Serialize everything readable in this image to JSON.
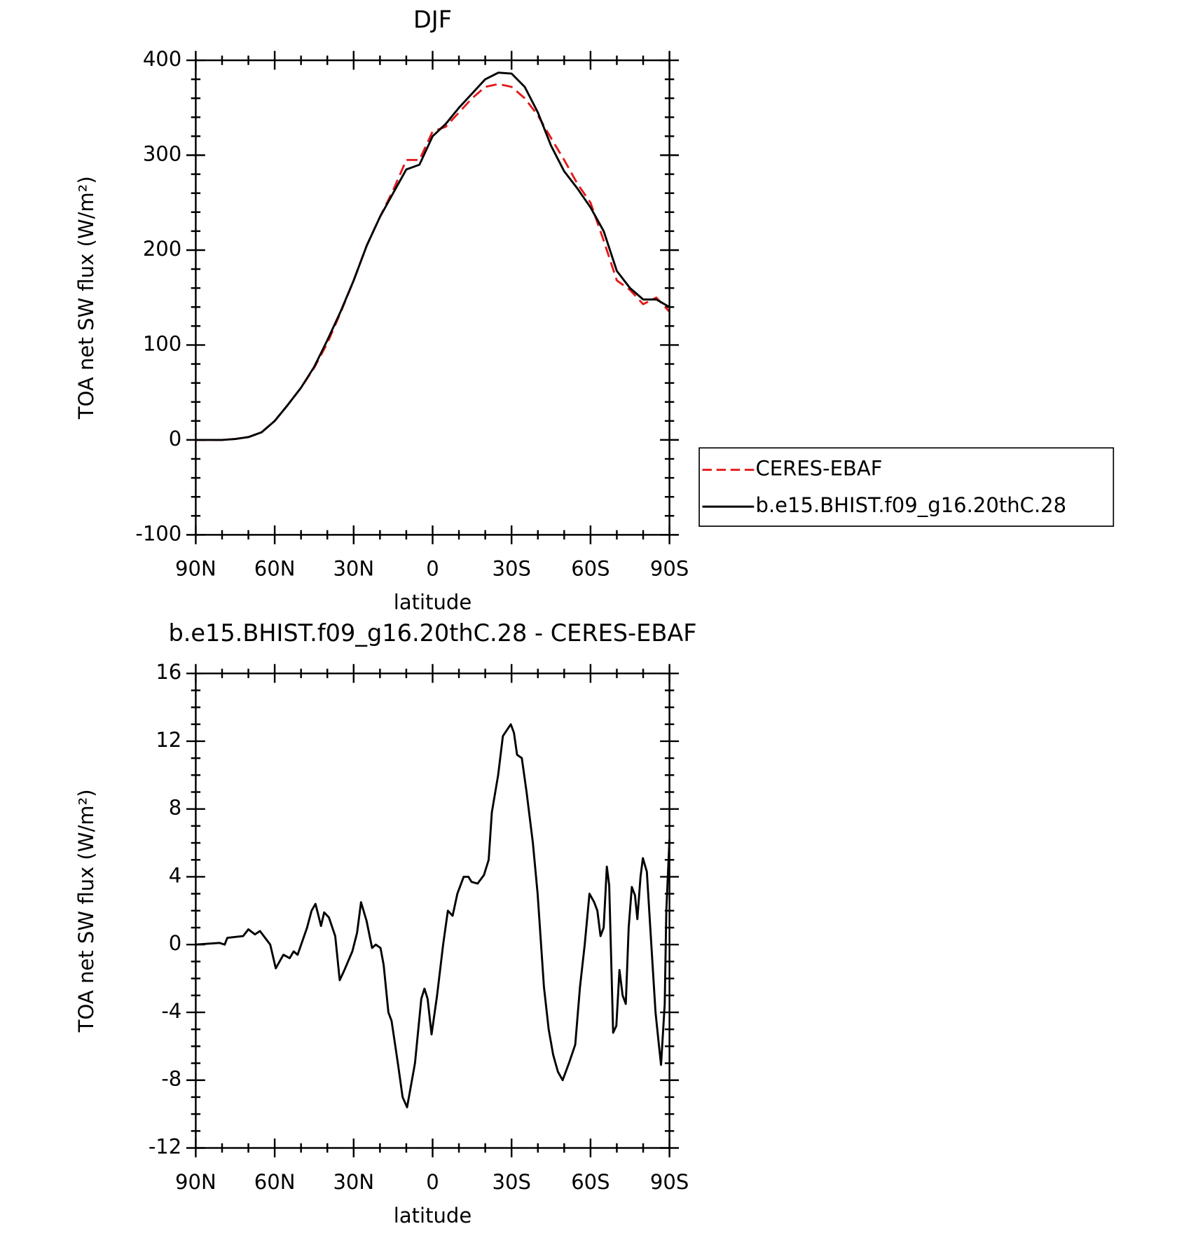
{
  "chart_data": [
    {
      "type": "line",
      "title": "DJF",
      "xlabel": "latitude",
      "ylabel": "TOA net SW flux (W/m²)",
      "x": [
        90,
        85,
        80,
        75,
        70,
        65,
        60,
        55,
        50,
        45,
        40,
        35,
        30,
        25,
        20,
        15,
        10,
        5,
        0,
        -5,
        -10,
        -15,
        -20,
        -25,
        -30,
        -35,
        -40,
        -45,
        -50,
        -55,
        -60,
        -65,
        -70,
        -75,
        -80,
        -85,
        -90
      ],
      "series": [
        {
          "name": "CERES-EBAF",
          "color": "#e41a1c",
          "dashed": true,
          "values": [
            0,
            0,
            0,
            1,
            3,
            8,
            20,
            37,
            55,
            76,
            102,
            134,
            168,
            205,
            235,
            263,
            295,
            295,
            325,
            330,
            345,
            360,
            372,
            375,
            372,
            360,
            342,
            318,
            295,
            270,
            250,
            210,
            168,
            158,
            143,
            150,
            135
          ]
        },
        {
          "name": "b.e15.BHIST.f09_g16.20thC.28",
          "color": "#000000",
          "dashed": false,
          "values": [
            0,
            0,
            0,
            1,
            3,
            8,
            20,
            37,
            55,
            77,
            105,
            135,
            168,
            205,
            235,
            260,
            285,
            290,
            320,
            333,
            350,
            365,
            380,
            387,
            386,
            372,
            345,
            310,
            283,
            265,
            245,
            220,
            178,
            160,
            148,
            148,
            140
          ]
        }
      ],
      "xlim": [
        90,
        -90
      ],
      "xticks": [
        {
          "value": 90,
          "label": "90N"
        },
        {
          "value": 60,
          "label": "60N"
        },
        {
          "value": 30,
          "label": "30N"
        },
        0,
        {
          "value": -30,
          "label": "30S"
        },
        {
          "value": -60,
          "label": "60S"
        },
        {
          "value": -90,
          "label": "90S"
        }
      ],
      "ylim": [
        -100,
        400
      ],
      "yticks": [
        -100,
        0,
        100,
        200,
        300,
        400
      ],
      "legend": "outside-right"
    },
    {
      "type": "line",
      "title": "b.e15.BHIST.f09_g16.20thC.28 - CERES-EBAF",
      "xlabel": "latitude",
      "ylabel": "TOA net SW flux (W/m²)",
      "x": [
        90,
        81,
        79,
        78,
        72,
        70,
        67.5,
        65.6,
        61.7,
        59.6,
        56.7,
        54.3,
        52.8,
        51.3,
        47.7,
        46,
        44.5,
        42.4,
        41.2,
        39.4,
        37,
        35.3,
        33.5,
        30.5,
        28.7,
        27.2,
        25.1,
        23,
        21.6,
        19.8,
        18.6,
        16.8,
        15.6,
        13.2,
        11.4,
        9.7,
        6.7,
        4.3,
        3.1,
        1.9,
        0.4,
        -1.7,
        -4,
        -5.8,
        -7.6,
        -9.4,
        -11.8,
        -13.6,
        -14.8,
        -17.1,
        -19.5,
        -21.3,
        -22.5,
        -24.9,
        -26.7,
        -29.7,
        -30.9,
        -32.1,
        -33.9,
        -35.7,
        -38.1,
        -39.9,
        -42.3,
        -44.1,
        -45.8,
        -47.6,
        -49.4,
        -51.8,
        -54.2,
        -56,
        -57.8,
        -59.6,
        -61.4,
        -62.6,
        -63.8,
        -65,
        -66.2,
        -67.1,
        -68.6,
        -69.8,
        -71,
        -72.2,
        -73.4,
        -74.5,
        -75.7,
        -76.9,
        -77.8,
        -79,
        -79.9,
        -81.4,
        -83.5,
        -84.7,
        -85.9,
        -86.8,
        -88.2,
        -88.8,
        -90
      ],
      "series": [
        {
          "color": "#000000",
          "dashed": false,
          "values": [
            0,
            0.1,
            0,
            0.4,
            0.5,
            0.9,
            0.6,
            0.8,
            0,
            -1.4,
            -0.6,
            -0.8,
            -0.4,
            -0.6,
            1,
            2,
            2.4,
            1.1,
            1.9,
            1.6,
            0.5,
            -2.1,
            -1.5,
            -0.4,
            0.7,
            2.5,
            1.4,
            -0.2,
            0,
            -0.2,
            -1.2,
            -4,
            -4.5,
            -7,
            -9,
            -9.6,
            -7,
            -3.2,
            -2.6,
            -3.2,
            -5.3,
            -3,
            0,
            2,
            1.7,
            3,
            4,
            4,
            3.7,
            3.6,
            4.1,
            5,
            7.8,
            10,
            12.3,
            13,
            12.5,
            11.2,
            11,
            9,
            6,
            3,
            -2.5,
            -5,
            -6.5,
            -7.5,
            -8,
            -7,
            -5.9,
            -2.5,
            0,
            3,
            2.5,
            2,
            0.5,
            1,
            4.6,
            3.5,
            -5.2,
            -4.8,
            -1.5,
            -3,
            -3.5,
            1,
            3.4,
            2.9,
            1.5,
            4,
            5.1,
            4.3,
            -1,
            -4,
            -5.8,
            -7.1,
            -3.5,
            2,
            6.2
          ]
        }
      ],
      "xlim": [
        90,
        -90
      ],
      "xticks": [
        {
          "value": 90,
          "label": "90N"
        },
        {
          "value": 60,
          "label": "60N"
        },
        {
          "value": 30,
          "label": "30N"
        },
        0,
        {
          "value": -30,
          "label": "30S"
        },
        {
          "value": -60,
          "label": "60S"
        },
        {
          "value": -90,
          "label": "90S"
        }
      ],
      "ylim": [
        -12,
        16
      ],
      "yticks": [
        -12,
        -8,
        -4,
        0,
        4,
        8,
        12,
        16
      ]
    }
  ]
}
